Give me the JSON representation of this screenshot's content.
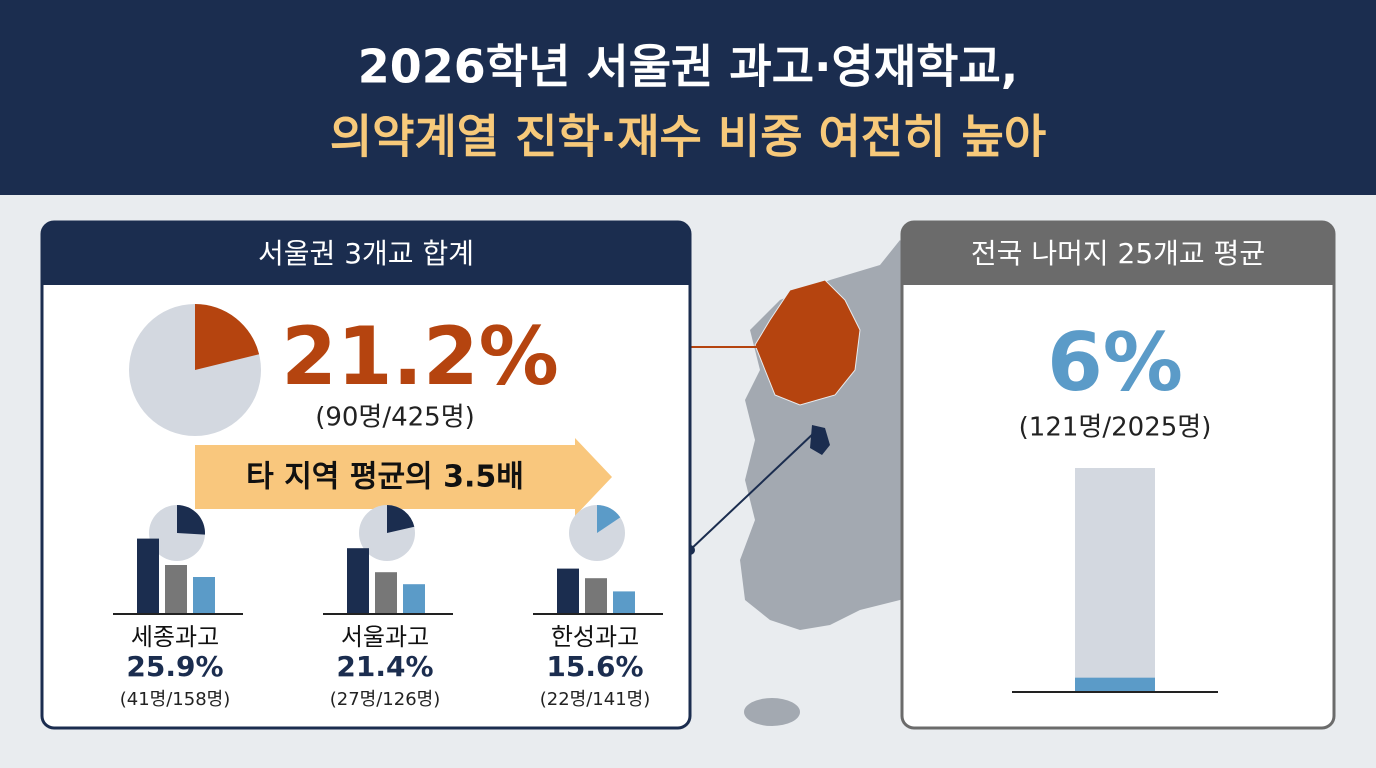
{
  "header": {
    "title_line1": "2026학년 서울권 과고·영재학교,",
    "title_line2": "의약계열 진학·재수 비중 여전히 높아"
  },
  "seoul": {
    "heading": "서울권 3개교 합계",
    "rate": "21.2%",
    "counts": "(90명/425명)",
    "count": 90,
    "total": 425,
    "color": "#b5440f",
    "callout": "타 지역 평균의 3.5배",
    "schools": [
      {
        "name": "세종과고",
        "rate": "25.9%",
        "counts": "(41명/158명)",
        "count": 41,
        "total": 158,
        "color": "#1b2d4f"
      },
      {
        "name": "서울과고",
        "rate": "21.4%",
        "counts": "(27명/126명)",
        "count": 27,
        "total": 126,
        "color": "#1b2d4f"
      },
      {
        "name": "한성과고",
        "rate": "15.6%",
        "counts": "(22명/141명)",
        "count": 22,
        "total": 141,
        "color": "#5b9bc8"
      }
    ]
  },
  "nation": {
    "heading": "전국 나머지 25개교 평균",
    "rate": "6%",
    "counts": "(121명/2025명)",
    "count": 121,
    "total": 2025,
    "color": "#5b9bc8"
  }
}
